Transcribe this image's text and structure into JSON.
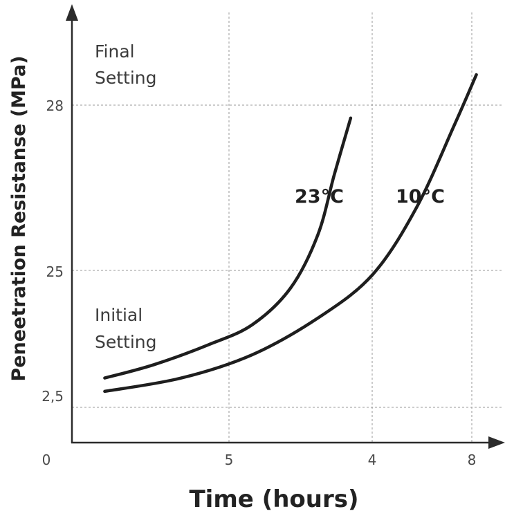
{
  "chart_data": {
    "type": "line",
    "title": "",
    "xlabel": "Time (hours)",
    "ylabel": "Peneetration Resistanse (MPa)",
    "x_ticks": [
      {
        "label": "0"
      },
      {
        "label": "5"
      },
      {
        "label": "4"
      },
      {
        "label": "8"
      }
    ],
    "y_ticks": [
      {
        "label": "2,5"
      },
      {
        "label": "2,5"
      },
      {
        "label": "25"
      },
      {
        "label": "28"
      }
    ],
    "annotations": {
      "final": [
        "Final",
        "Setting"
      ],
      "initial": [
        "Initial",
        "Setting"
      ]
    },
    "grid": true,
    "series": [
      {
        "name": "23°C",
        "points": [
          [
            0.6,
            0.09
          ],
          [
            1.5,
            0.13
          ],
          [
            2.5,
            0.19
          ],
          [
            3.3,
            0.25
          ],
          [
            4.0,
            0.36
          ],
          [
            4.5,
            0.52
          ],
          [
            4.8,
            0.7
          ],
          [
            5.1,
            0.87
          ]
        ]
      },
      {
        "name": "10°C",
        "points": [
          [
            0.6,
            0.05
          ],
          [
            2.0,
            0.09
          ],
          [
            3.3,
            0.16
          ],
          [
            4.5,
            0.27
          ],
          [
            5.5,
            0.4
          ],
          [
            6.3,
            0.6
          ],
          [
            7.0,
            0.85
          ],
          [
            7.4,
            1.0
          ]
        ]
      }
    ]
  }
}
